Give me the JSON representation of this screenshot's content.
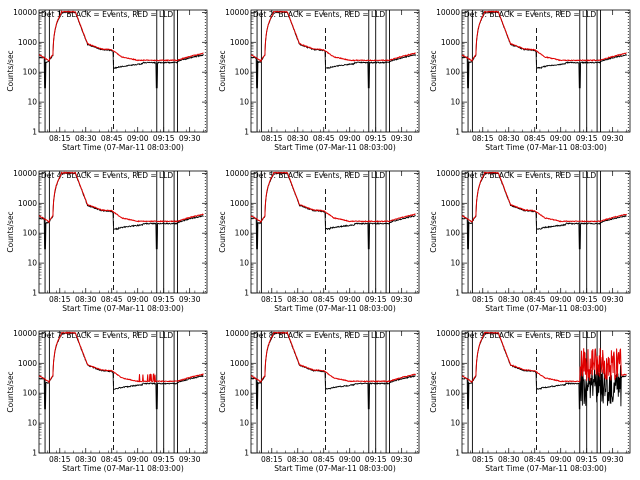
{
  "chart_data": {
    "type": "line",
    "panels": [
      {
        "title": "Det 1: BLACK = Events, RED = LLD",
        "variant": 1
      },
      {
        "title": "Det 2: BLACK = Events, RED = LLD",
        "variant": 2
      },
      {
        "title": "Det 3: BLACK = Events, RED = LLD",
        "variant": 3
      },
      {
        "title": "Det 4: BLACK = Events, RED = LLD",
        "variant": 4
      },
      {
        "title": "Det 5: BLACK = Events, RED = LLD",
        "variant": 5
      },
      {
        "title": "Det 6: BLACK = Events, RED = LLD",
        "variant": 6
      },
      {
        "title": "Det 7: BLACK = Events, RED = LLD",
        "variant": 7
      },
      {
        "title": "Det 8: BLACK = Events, RED = LLD",
        "variant": 8
      },
      {
        "title": "Det 9: BLACK = Events, RED = LLD",
        "variant": 9
      }
    ],
    "xlabel": "Start Time (07-Mar-11 08:03:00)",
    "ylabel": "Counts/sec",
    "x_ticks": [
      {
        "label": "08:15",
        "min": 12
      },
      {
        "label": "08:30",
        "min": 27
      },
      {
        "label": "08:45",
        "min": 42
      },
      {
        "label": "09:00",
        "min": 57
      },
      {
        "label": "09:15",
        "min": 72
      },
      {
        "label": "09:30",
        "min": 87
      }
    ],
    "y_ticks": [
      {
        "label": "1",
        "value": 1
      },
      {
        "label": "10",
        "value": 10
      },
      {
        "label": "100",
        "value": 100
      },
      {
        "label": "1000",
        "value": 1000
      },
      {
        "label": "10000",
        "value": 10000
      }
    ],
    "y_scale": "log",
    "xlim": [
      0,
      97
    ],
    "ylim": [
      1,
      12000
    ],
    "vertical_lines_min": [
      3.5,
      6,
      68,
      72,
      78,
      80
    ],
    "dashed_line_min": 43,
    "dotted_line_min": 96,
    "series_colors": {
      "events": "#000000",
      "lld": "#e00000"
    }
  }
}
